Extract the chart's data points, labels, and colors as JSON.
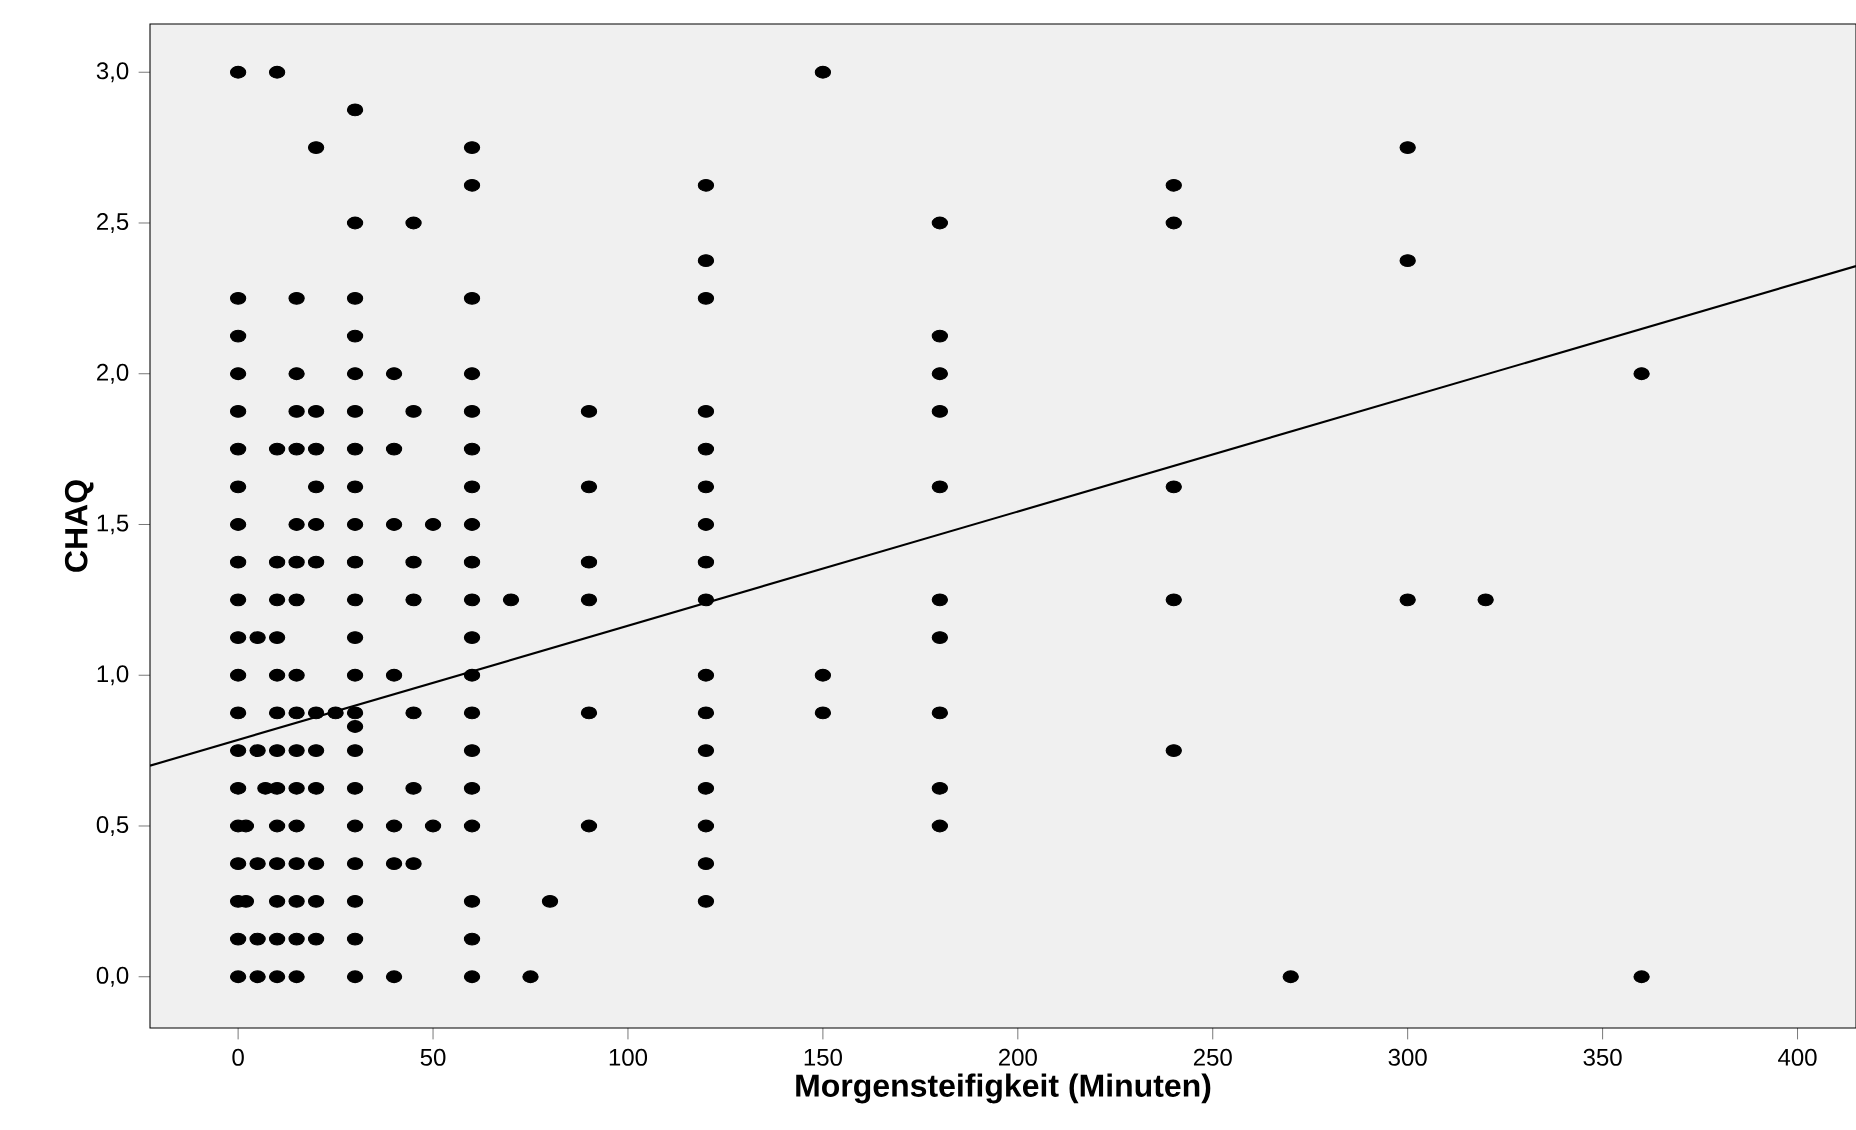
{
  "chart_data": {
    "type": "scatter",
    "xlabel": "Morgensteifigkeit (Minuten)",
    "ylabel": "CHAQ",
    "xlim": [
      -22.6,
      415
    ],
    "ylim": [
      -0.17,
      3.16
    ],
    "xticks": [
      0,
      50,
      100,
      150,
      200,
      250,
      300,
      350,
      400
    ],
    "yticks": [
      {
        "value": 0,
        "label": "0,0"
      },
      {
        "value": 0.5,
        "label": "0,5"
      },
      {
        "value": 1,
        "label": "1,0"
      },
      {
        "value": 1.5,
        "label": "1,5"
      },
      {
        "value": 2,
        "label": "2,0"
      },
      {
        "value": 2.5,
        "label": "2,5"
      },
      {
        "value": 3,
        "label": "3,0"
      }
    ],
    "marker": "circle",
    "grid": false,
    "series": [
      {
        "color": "#000000",
        "x": [
          0,
          10,
          150,
          30,
          20,
          60,
          300,
          60,
          120,
          240,
          30,
          45,
          180,
          240,
          120,
          300,
          0,
          15,
          30,
          60,
          120,
          0,
          30,
          180,
          0,
          15,
          30,
          40,
          60,
          180,
          360,
          0,
          15,
          20,
          30,
          45,
          60,
          90,
          120,
          180,
          0,
          10,
          15,
          20,
          30,
          40,
          60,
          120,
          0,
          20,
          30,
          60,
          90,
          120,
          180,
          240,
          0,
          15,
          20,
          30,
          40,
          50,
          60,
          120,
          0,
          10,
          15,
          20,
          30,
          45,
          60,
          90,
          120,
          0,
          10,
          15,
          30,
          45,
          60,
          70,
          90,
          120,
          180,
          240,
          300,
          320,
          0,
          5,
          10,
          30,
          60,
          180,
          0,
          10,
          15,
          30,
          40,
          60,
          120,
          150,
          0,
          10,
          15,
          20,
          25,
          30,
          45,
          60,
          90,
          120,
          150,
          180,
          30,
          0,
          5,
          10,
          15,
          20,
          30,
          60,
          120,
          240,
          0,
          7,
          10,
          15,
          20,
          30,
          45,
          60,
          120,
          180,
          0,
          2,
          10,
          15,
          30,
          40,
          50,
          60,
          90,
          120,
          180,
          0,
          5,
          10,
          15,
          20,
          30,
          40,
          45,
          120,
          0,
          2,
          10,
          15,
          20,
          30,
          60,
          80,
          120,
          0,
          5,
          10,
          15,
          20,
          30,
          60,
          0,
          5,
          10,
          15,
          30,
          40,
          60,
          75,
          270,
          360
        ],
        "values": [
          3,
          3,
          3,
          2.875,
          2.75,
          2.75,
          2.75,
          2.625,
          2.625,
          2.625,
          2.5,
          2.5,
          2.5,
          2.5,
          2.375,
          2.375,
          2.25,
          2.25,
          2.25,
          2.25,
          2.25,
          2.125,
          2.125,
          2.125,
          2,
          2,
          2,
          2,
          2,
          2,
          2,
          1.875,
          1.875,
          1.875,
          1.875,
          1.875,
          1.875,
          1.875,
          1.875,
          1.875,
          1.75,
          1.75,
          1.75,
          1.75,
          1.75,
          1.75,
          1.75,
          1.75,
          1.625,
          1.625,
          1.625,
          1.625,
          1.625,
          1.625,
          1.625,
          1.625,
          1.5,
          1.5,
          1.5,
          1.5,
          1.5,
          1.5,
          1.5,
          1.5,
          1.375,
          1.375,
          1.375,
          1.375,
          1.375,
          1.375,
          1.375,
          1.375,
          1.375,
          1.25,
          1.25,
          1.25,
          1.25,
          1.25,
          1.25,
          1.25,
          1.25,
          1.25,
          1.25,
          1.25,
          1.25,
          1.25,
          1.125,
          1.125,
          1.125,
          1.125,
          1.125,
          1.125,
          1,
          1,
          1,
          1,
          1,
          1,
          1,
          1,
          0.875,
          0.875,
          0.875,
          0.875,
          0.875,
          0.875,
          0.875,
          0.875,
          0.875,
          0.875,
          0.875,
          0.875,
          0.83,
          0.75,
          0.75,
          0.75,
          0.75,
          0.75,
          0.75,
          0.75,
          0.75,
          0.75,
          0.625,
          0.625,
          0.625,
          0.625,
          0.625,
          0.625,
          0.625,
          0.625,
          0.625,
          0.625,
          0.5,
          0.5,
          0.5,
          0.5,
          0.5,
          0.5,
          0.5,
          0.5,
          0.5,
          0.5,
          0.5,
          0.375,
          0.375,
          0.375,
          0.375,
          0.375,
          0.375,
          0.375,
          0.375,
          0.375,
          0.25,
          0.25,
          0.25,
          0.25,
          0.25,
          0.25,
          0.25,
          0.25,
          0.25,
          0.125,
          0.125,
          0.125,
          0.125,
          0.125,
          0.125,
          0.125,
          0,
          0,
          0,
          0,
          0,
          0,
          0,
          0,
          0,
          0
        ]
      },
      {
        "type": "line",
        "color": "#000000",
        "marker": "none",
        "line_style": "solid",
        "x": [
          -22.6,
          415
        ],
        "values": [
          0.7,
          2.357
        ]
      }
    ]
  }
}
